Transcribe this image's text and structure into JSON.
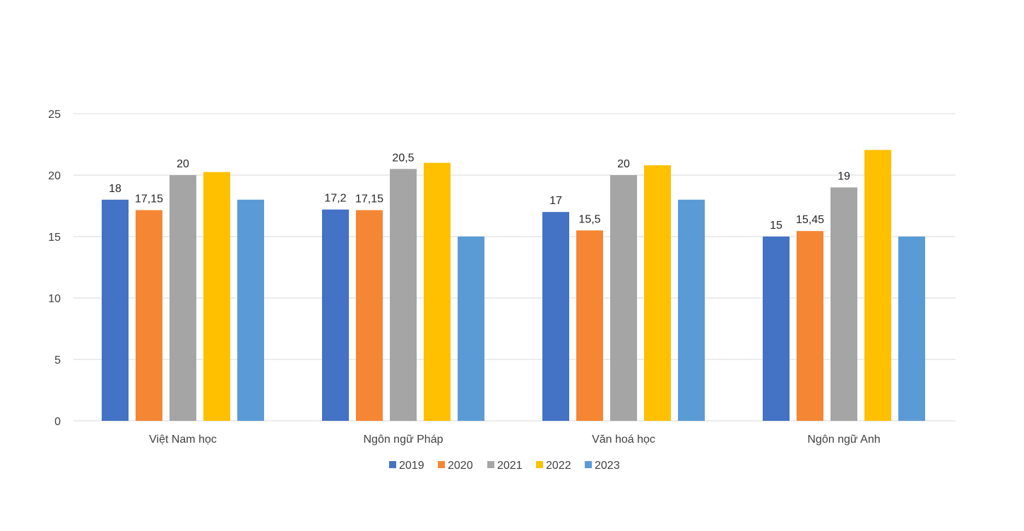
{
  "chart_data": {
    "type": "bar",
    "title": "",
    "xlabel": "",
    "ylabel": "",
    "ylim": [
      0,
      25
    ],
    "yticks": [
      "0",
      "5",
      "10",
      "15",
      "20",
      "25"
    ],
    "grid": true,
    "legend_position": "bottom",
    "categories": [
      "Việt Nam học",
      "Ngôn ngữ Pháp",
      "Văn hoá học",
      "Ngôn ngữ Anh"
    ],
    "series": [
      {
        "name": "2019",
        "color": "#4472c4",
        "values": [
          18,
          17.2,
          17,
          15
        ],
        "labels": [
          "18",
          "17,2",
          "17",
          "15"
        ]
      },
      {
        "name": "2020",
        "color": "#f58634",
        "values": [
          17.15,
          17.15,
          15.5,
          15.45
        ],
        "labels": [
          "17,15",
          "17,15",
          "15,5",
          "15,45"
        ]
      },
      {
        "name": "2021",
        "color": "#a5a5a5",
        "values": [
          20,
          20.5,
          20,
          19
        ],
        "labels": [
          "20",
          "20,5",
          "20",
          "19"
        ]
      },
      {
        "name": "2022",
        "color": "#ffc000",
        "values": [
          20.25,
          21,
          20.8,
          22.05
        ],
        "labels": [
          "",
          "",
          "",
          ""
        ]
      },
      {
        "name": "2023",
        "color": "#5b9bd5",
        "values": [
          18,
          15,
          18,
          15
        ],
        "labels": [
          "",
          "",
          "",
          ""
        ]
      }
    ]
  }
}
